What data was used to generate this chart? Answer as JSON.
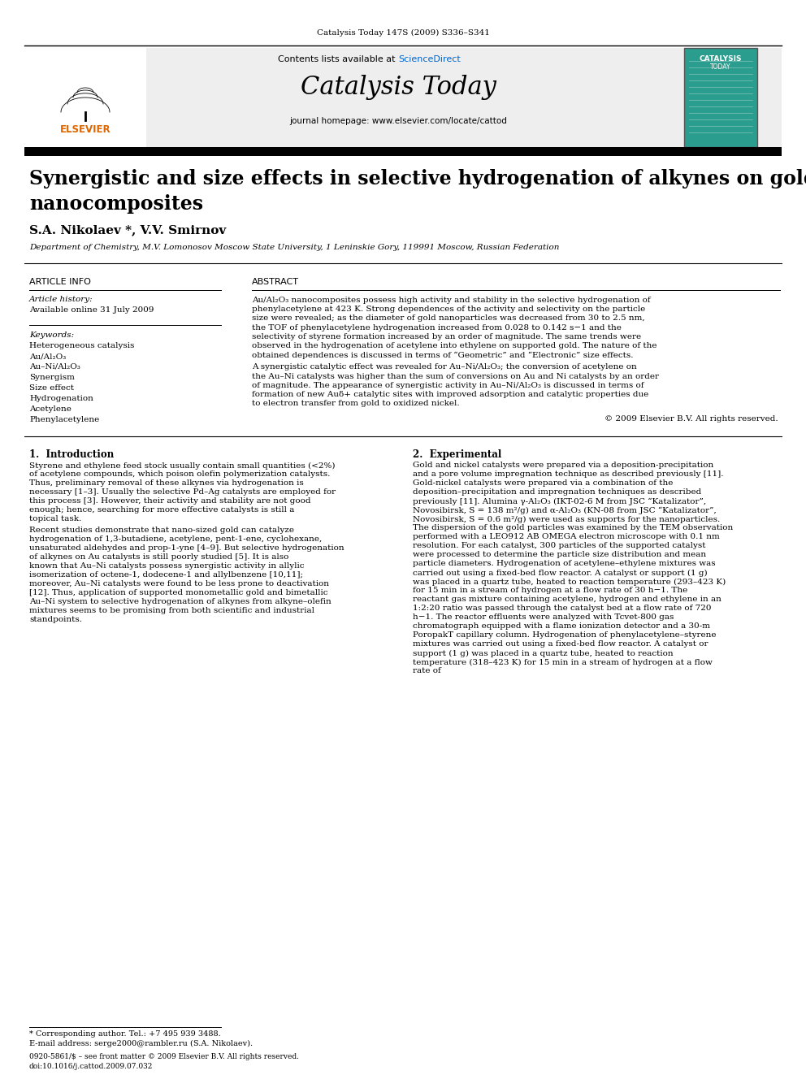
{
  "journal_line": "Catalysis Today 147S (2009) S336–S341",
  "contents_line": "Contents lists available at ScienceDirect",
  "sciencedirect_color": "#0066cc",
  "journal_title": "Catalysis Today",
  "journal_homepage": "journal homepage: www.elsevier.com/locate/cattod",
  "paper_title": "Synergistic and size effects in selective hydrogenation of alkynes on gold\nnanocomposites",
  "authors": "S.A. Nikolaev *, V.V. Smirnov",
  "affiliation": "Department of Chemistry, M.V. Lomonosov Moscow State University, 1 Leninskie Gory, 119991 Moscow, Russian Federation",
  "article_info_label": "ARTICLE INFO",
  "abstract_label": "ABSTRACT",
  "article_history_label": "Article history:",
  "available_online": "Available online 31 July 2009",
  "keywords_label": "Keywords:",
  "keywords": [
    "Heterogeneous catalysis",
    "Au/Al₂O₃",
    "Au–Ni/Al₂O₃",
    "Synergism",
    "Size effect",
    "Hydrogenation",
    "Acetylene",
    "Phenylacetylene"
  ],
  "abstract_text": "Au/Al₂O₃ nanocomposites possess high activity and stability in the selective hydrogenation of phenylacetylene at 423 K. Strong dependences of the activity and selectivity on the particle size were revealed; as the diameter of gold nanoparticles was decreased from 30 to 2.5 nm, the TOF of phenylacetylene hydrogenation increased from 0.028 to 0.142 s−1 and the selectivity of styrene formation increased by an order of magnitude. The same trends were observed in the hydrogenation of acetylene into ethylene on supported gold. The nature of the obtained dependences is discussed in terms of “Geometric” and “Electronic” size effects.\n    A synergistic catalytic effect was revealed for Au–Ni/Al₂O₃; the conversion of acetylene on the Au–Ni catalysts was higher than the sum of conversions on Au and Ni catalysts by an order of magnitude. The appearance of synergistic activity in Au–Ni/Al₂O₃ is discussed in terms of formation of new Auδ+ catalytic sites with improved adsorption and catalytic properties due to electron transfer from gold to oxidized nickel.",
  "copyright": "© 2009 Elsevier B.V. All rights reserved.",
  "section1_title": "1.  Introduction",
  "section1_text": "Styrene and ethylene feed stock usually contain small quantities (<2%) of acetylene compounds, which poison olefin polymerization catalysts. Thus, preliminary removal of these alkynes via hydrogenation is necessary [1–3]. Usually the selective Pd–Ag catalysts are employed for this process [3]. However, their activity and stability are not good enough; hence, searching for more effective catalysts is still a topical task.\n    Recent studies demonstrate that nano-sized gold can catalyze hydrogenation of 1,3-butadiene, acetylene, pent-1-ene, cyclohexane, unsaturated aldehydes and prop-1-yne [4–9]. But selective hydrogenation of alkynes on Au catalysts is still poorly studied [5]. It is also known that Au–Ni catalysts possess synergistic activity in allylic isomerization of octene-1, dodecene-1 and allylbenzene [10,11]; moreover, Au–Ni catalysts were found to be less prone to deactivation [12]. Thus, application of supported monometallic gold and bimetallic Au–Ni system to selective hydrogenation of alkynes from alkyne–olefin mixtures seems to be promising from both scientific and industrial standpoints.",
  "section2_title": "2.  Experimental",
  "section2_text": "Gold and nickel catalysts were prepared via a deposition-precipitation and a pore volume impregnation technique as described previously [11]. Gold-nickel catalysts were prepared via a combination of the deposition–precipitation and impregnation techniques as described previously [11]. Alumina γ-Al₂O₃ (IKT-02-6 M from JSC “Katalizator”, Novosibirsk, S = 138 m²/g) and α-Al₂O₃ (KN-08 from JSC “Katalizator”, Novosibirsk, S = 0.6 m²/g) were used as supports for the nanoparticles. The dispersion of the gold particles was examined by the TEM observation performed with a LEO912 AB OMEGA electron microscope with 0.1 nm resolution. For each catalyst, 300 particles of the supported catalyst were processed to determine the particle size distribution and mean particle diameters. Hydrogenation of acetylene–ethylene mixtures was carried out using a fixed-bed flow reactor. A catalyst or support (1 g) was placed in a quartz tube, heated to reaction temperature (293–423 K) for 15 min in a stream of hydrogen at a flow rate of 30 h−1. The reactant gas mixture containing acetylene, hydrogen and ethylene in an 1:2:20 ratio was passed through the catalyst bed at a flow rate of 720 h−1. The reactor effluents were analyzed with Tcvet-800 gas chromatograph equipped with a flame ionization detector and a 30-m PoropakT capillary column. Hydrogenation of phenylacetylene–styrene mixtures was carried out using a fixed-bed flow reactor. A catalyst or support (1 g) was placed in a quartz tube, heated to reaction temperature (318–423 K) for 15 min in a stream of hydrogen at a flow rate of",
  "footnote_star": "* Corresponding author. Tel.: +7 495 939 3488.",
  "footnote_email": "E-mail address: serge2000@rambler.ru (S.A. Nikolaev).",
  "footer_line1": "0920-5861/$ – see front matter © 2009 Elsevier B.V. All rights reserved.",
  "footer_line2": "doi:10.1016/j.cattod.2009.07.032"
}
